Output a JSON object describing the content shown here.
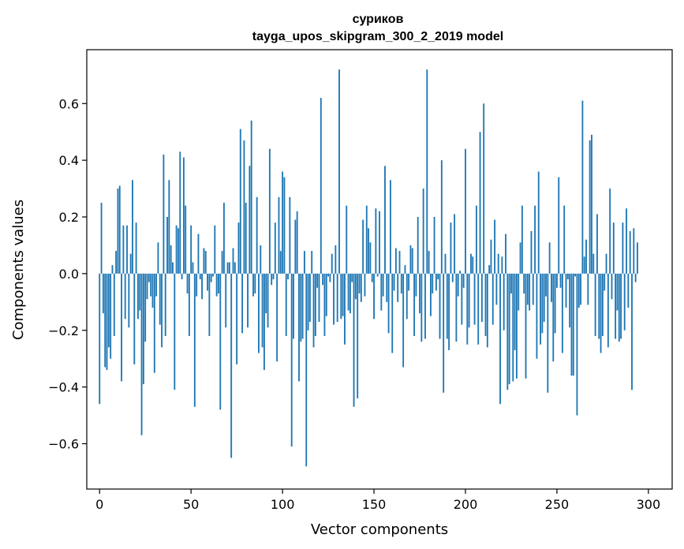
{
  "chart_data": {
    "type": "bar",
    "title": "сурикoв",
    "subtitle": "tayga_upos_skipgram_300_2_2019 model",
    "xlabel": "Vector components",
    "ylabel": "Components values",
    "xlim": [
      -7,
      313
    ],
    "ylim": [
      -0.76,
      0.79
    ],
    "grid": false,
    "legend": "none",
    "bar_color": "#1f77b4",
    "x_ticks": [
      0,
      50,
      100,
      150,
      200,
      250,
      300
    ],
    "x_tick_labels": [
      "0",
      "50",
      "100",
      "150",
      "200",
      "250",
      "300"
    ],
    "y_ticks": [
      -0.6,
      -0.4,
      -0.2,
      0.0,
      0.2,
      0.4,
      0.6
    ],
    "y_tick_labels": [
      "−0.6",
      "−0.4",
      "−0.2",
      "0.0",
      "0.2",
      "0.4",
      "0.6"
    ],
    "values": [
      -0.46,
      0.25,
      -0.14,
      -0.33,
      -0.34,
      -0.26,
      -0.3,
      0.03,
      -0.22,
      0.08,
      0.3,
      0.31,
      -0.38,
      0.17,
      -0.16,
      0.17,
      -0.19,
      0.07,
      0.33,
      -0.32,
      0.18,
      -0.16,
      -0.13,
      -0.57,
      -0.39,
      -0.24,
      -0.09,
      -0.03,
      -0.08,
      -0.12,
      -0.35,
      -0.08,
      0.11,
      -0.18,
      -0.26,
      0.42,
      -0.22,
      0.2,
      0.33,
      0.1,
      0.04,
      -0.41,
      0.17,
      0.16,
      0.43,
      -0.02,
      0.41,
      0.24,
      -0.07,
      -0.22,
      0.17,
      0.04,
      -0.47,
      -0.08,
      0.14,
      -0.02,
      -0.09,
      0.09,
      0.08,
      -0.06,
      -0.22,
      -0.03,
      -0.01,
      0.17,
      -0.08,
      -0.07,
      -0.48,
      0.08,
      0.25,
      -0.19,
      0.04,
      0.04,
      -0.65,
      0.09,
      0.04,
      -0.32,
      0.18,
      0.51,
      -0.21,
      0.47,
      0.25,
      -0.19,
      0.38,
      0.54,
      -0.08,
      -0.07,
      0.27,
      -0.28,
      0.1,
      -0.26,
      -0.34,
      -0.14,
      -0.19,
      0.44,
      -0.04,
      -0.02,
      0.18,
      -0.31,
      0.27,
      0.08,
      0.36,
      0.34,
      -0.22,
      -0.02,
      0.27,
      -0.61,
      -0.23,
      0.19,
      0.22,
      -0.38,
      -0.24,
      -0.23,
      0.08,
      -0.68,
      -0.2,
      -0.17,
      0.08,
      -0.26,
      -0.22,
      -0.05,
      -0.17,
      0.62,
      -0.04,
      -0.22,
      -0.15,
      -0.01,
      -0.03,
      0.07,
      -0.18,
      0.1,
      -0.17,
      0.72,
      -0.16,
      -0.15,
      -0.25,
      0.24,
      -0.13,
      -0.14,
      -0.03,
      -0.47,
      -0.09,
      -0.44,
      -0.07,
      -0.1,
      0.19,
      -0.08,
      0.24,
      0.16,
      0.11,
      -0.03,
      -0.16,
      0.23,
      -0.01,
      0.22,
      -0.13,
      -0.08,
      0.38,
      -0.1,
      -0.21,
      0.33,
      -0.28,
      -0.06,
      0.09,
      -0.1,
      0.08,
      -0.07,
      -0.33,
      0.03,
      -0.16,
      -0.06,
      0.1,
      0.09,
      -0.22,
      -0.08,
      0.2,
      -0.14,
      -0.24,
      0.3,
      -0.23,
      0.72,
      0.08,
      -0.15,
      -0.07,
      0.2,
      -0.06,
      -0.02,
      -0.23,
      0.4,
      -0.42,
      0.07,
      -0.23,
      -0.27,
      0.18,
      -0.03,
      0.21,
      -0.24,
      -0.08,
      0.01,
      -0.18,
      -0.05,
      0.44,
      -0.25,
      -0.19,
      0.07,
      0.06,
      -0.18,
      0.24,
      -0.25,
      0.5,
      -0.17,
      0.6,
      -0.22,
      -0.26,
      0.03,
      0.12,
      -0.18,
      0.19,
      -0.11,
      0.07,
      -0.46,
      0.06,
      -0.2,
      0.14,
      -0.41,
      -0.39,
      -0.07,
      -0.38,
      -0.27,
      -0.37,
      -0.13,
      0.11,
      0.24,
      -0.07,
      -0.37,
      -0.11,
      -0.13,
      0.15,
      -0.11,
      0.24,
      -0.3,
      0.36,
      -0.25,
      -0.21,
      -0.17,
      -0.08,
      -0.42,
      0.11,
      -0.1,
      -0.31,
      -0.21,
      -0.05,
      0.34,
      -0.05,
      -0.28,
      0.24,
      -0.12,
      -0.02,
      -0.19,
      -0.36,
      -0.36,
      -0.01,
      -0.5,
      -0.12,
      -0.11,
      0.61,
      0.06,
      0.12,
      -0.11,
      0.47,
      0.49,
      0.07,
      -0.22,
      0.21,
      -0.23,
      -0.28,
      -0.22,
      -0.06,
      0.07,
      -0.26,
      0.3,
      -0.09,
      0.18,
      -0.23,
      -0.13,
      -0.24,
      -0.23,
      0.18,
      -0.2,
      0.23,
      -0.12,
      0.15,
      -0.41,
      0.16,
      -0.03,
      0.11
    ]
  }
}
